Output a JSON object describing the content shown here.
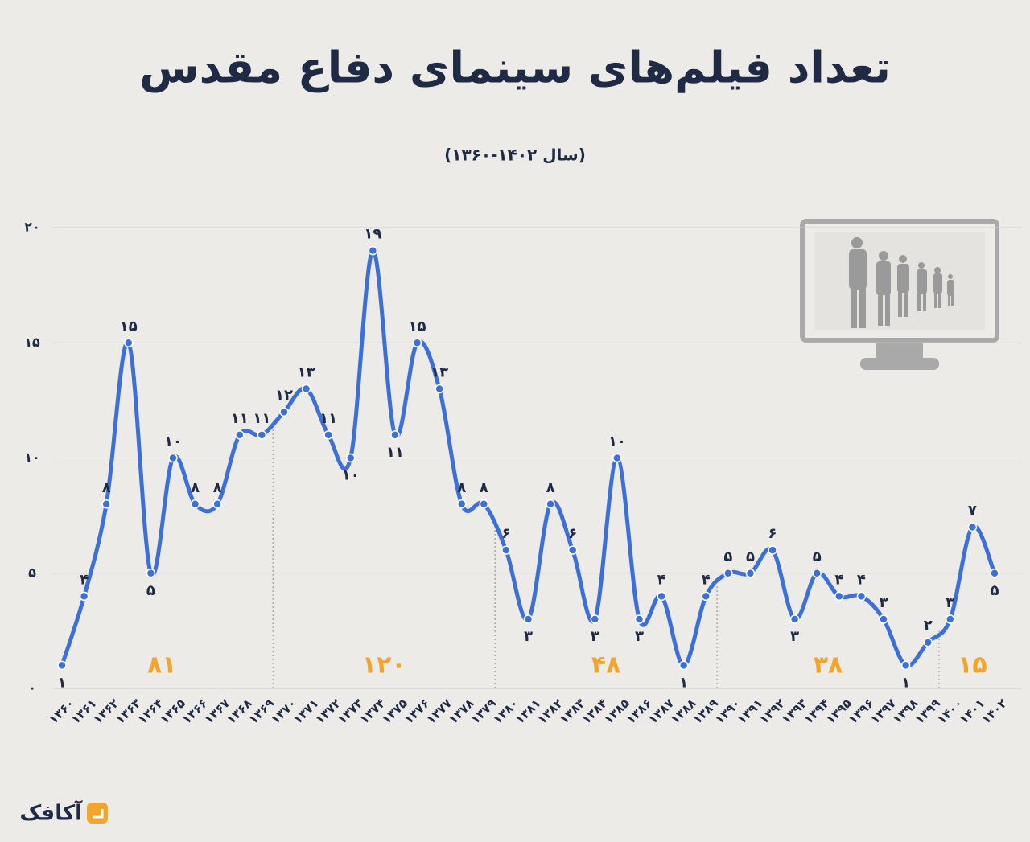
{
  "chart_data": {
    "type": "line",
    "title": "تعداد فیلم‌های سینمای دفاع مقدس",
    "subtitle": "(سال ۱۴۰۲-۱۳۶۰)",
    "brand": "آکافک",
    "color": "#3d6fd8",
    "categories": [
      "۱۳۶۰",
      "۱۳۶۱",
      "۱۳۶۲",
      "۱۳۶۳",
      "۱۳۶۴",
      "۱۳۶۵",
      "۱۳۶۶",
      "۱۳۶۷",
      "۱۳۶۸",
      "۱۳۶۹",
      "۱۳۷۰",
      "۱۳۷۱",
      "۱۳۷۲",
      "۱۳۷۳",
      "۱۳۷۴",
      "۱۳۷۵",
      "۱۳۷۶",
      "۱۳۷۷",
      "۱۳۷۸",
      "۱۳۷۹",
      "۱۳۸۰",
      "۱۳۸۱",
      "۱۳۸۲",
      "۱۳۸۳",
      "۱۳۸۴",
      "۱۳۸۵",
      "۱۳۸۶",
      "۱۳۸۷",
      "۱۳۸۸",
      "۱۳۸۹",
      "۱۳۹۰",
      "۱۳۹۱",
      "۱۳۹۲",
      "۱۳۹۳",
      "۱۳۹۴",
      "۱۳۹۵",
      "۱۳۹۶",
      "۱۳۹۷",
      "۱۳۹۸",
      "۱۳۹۹",
      "۱۴۰۰",
      "۱۴۰۱",
      "۱۴۰۲"
    ],
    "values": [
      1,
      4,
      8,
      15,
      5,
      10,
      8,
      8,
      11,
      11,
      12,
      13,
      11,
      10,
      19,
      11,
      15,
      13,
      8,
      8,
      6,
      3,
      8,
      6,
      3,
      10,
      3,
      4,
      1,
      4,
      5,
      5,
      6,
      3,
      5,
      4,
      4,
      3,
      1,
      2,
      3,
      7,
      5
    ],
    "value_labels": [
      "۱",
      "۴",
      "۸",
      "۱۵",
      "۵",
      "۱۰",
      "۸",
      "۸",
      "۱۱",
      "۱۱",
      "۱۲",
      "۱۳",
      "۱۱",
      "۱۰",
      "۱۹",
      "۱۱",
      "۱۵",
      "۱۳",
      "۸",
      "۸",
      "۶",
      "۳",
      "۸",
      "۶",
      "۳",
      "۱۰",
      "۳",
      "۴",
      "۱",
      "۴",
      "۵",
      "۵",
      "۶",
      "۳",
      "۵",
      "۴",
      "۴",
      "۳",
      "۱",
      "۲",
      "۳",
      "۷",
      "۵"
    ],
    "ylim": [
      0,
      20
    ],
    "yticks": [
      {
        "value": 0,
        "label": "۰"
      },
      {
        "value": 5,
        "label": "۵"
      },
      {
        "value": 10,
        "label": "۱۰"
      },
      {
        "value": 15,
        "label": "۱۵"
      },
      {
        "value": 20,
        "label": "۲۰"
      }
    ],
    "grid": true,
    "annotations": [
      {
        "text": "۸۱",
        "color": "#f2a52a"
      },
      {
        "text": "۱۲۰",
        "color": "#f2a52a"
      },
      {
        "text": "۴۸",
        "color": "#f2a52a"
      },
      {
        "text": "۳۸",
        "color": "#f2a52a"
      },
      {
        "text": "۱۵",
        "color": "#f2a52a"
      }
    ]
  }
}
